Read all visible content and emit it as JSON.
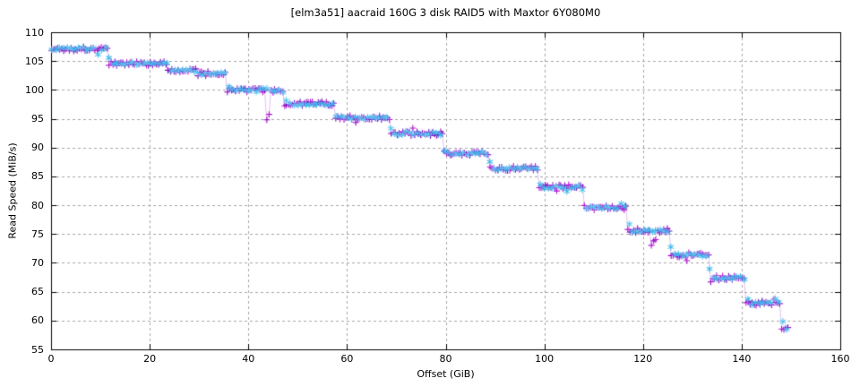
{
  "chart_data": {
    "type": "scatter",
    "title": "[elm3a51] aacraid 160G 3 disk RAID5 with Maxtor 6Y080M0",
    "xlabel": "Offset (GiB)",
    "ylabel": "Read Speed (MiB/s)",
    "xlim": [
      0,
      160
    ],
    "ylim": [
      55,
      110
    ],
    "xticks": [
      0,
      20,
      40,
      60,
      80,
      100,
      120,
      140,
      160
    ],
    "yticks": [
      55,
      60,
      65,
      70,
      75,
      80,
      85,
      90,
      95,
      100,
      105,
      110
    ],
    "grid": true,
    "legend": "none",
    "colors": {
      "background": "#ffffff",
      "border": "#000000",
      "grid": "#a6a6a6",
      "text": "#000000"
    },
    "steps": [
      [
        0.0,
        11.7,
        107.1
      ],
      [
        11.7,
        23.5,
        104.6
      ],
      [
        23.5,
        29.5,
        103.3
      ],
      [
        29.5,
        35.7,
        102.8
      ],
      [
        35.7,
        47.2,
        100.0
      ],
      [
        47.2,
        57.3,
        97.6
      ],
      [
        57.3,
        68.7,
        95.2
      ],
      [
        68.7,
        79.4,
        92.4
      ],
      [
        79.4,
        88.9,
        89.0
      ],
      [
        88.9,
        98.7,
        86.4
      ],
      [
        98.7,
        107.9,
        83.2
      ],
      [
        107.9,
        116.9,
        79.6
      ],
      [
        116.9,
        125.4,
        75.6
      ],
      [
        125.4,
        133.4,
        71.4
      ],
      [
        133.4,
        140.9,
        67.4
      ],
      [
        140.9,
        148.0,
        63.0
      ],
      [
        148.0,
        149.4,
        58.6
      ]
    ],
    "series": [
      {
        "name": "read-speed-plus-markers",
        "marker": "plus",
        "marker_colors": [
          "#b211d2",
          "#8a06be"
        ],
        "line_color": "rgba(200,140,225,0.55)",
        "spacing_gib": 0.4,
        "noise": 0.4,
        "transition_width_gib": 0.0,
        "dips": [
          [
            43.7,
            44.5,
            95.4
          ],
          [
            121.4,
            122.6,
            73.4
          ]
        ]
      },
      {
        "name": "read-speed-asterisk-markers",
        "marker": "asterisk",
        "marker_colors": [
          "#3db9ea",
          "#56c4ef"
        ],
        "line_color": null,
        "spacing_gib": 0.78,
        "noise": 0.27,
        "transition_width_gib": 0.7,
        "dips": []
      }
    ]
  }
}
